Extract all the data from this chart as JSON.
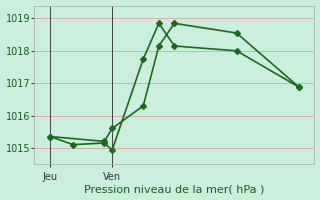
{
  "xlabel": "Pression niveau de la mer( hPa )",
  "background_color": "#cceedd",
  "grid_color": "#ddaaaa",
  "line_color": "#1a6b1a",
  "ylim": [
    1014.5,
    1019.4
  ],
  "xlim": [
    0,
    18
  ],
  "day_ticks": [
    1,
    5
  ],
  "day_labels": [
    "Jeu",
    "Ven"
  ],
  "day_vlines": [
    1,
    5
  ],
  "series1_x": [
    1,
    2.5,
    4.5,
    5,
    7,
    8,
    9,
    13,
    17
  ],
  "series1_y": [
    1015.35,
    1015.1,
    1015.15,
    1014.93,
    1017.75,
    1018.85,
    1018.15,
    1018.0,
    1016.88
  ],
  "series2_x": [
    1,
    4.5,
    5,
    7,
    8,
    9,
    13,
    17
  ],
  "series2_y": [
    1015.35,
    1015.2,
    1015.6,
    1016.3,
    1018.15,
    1018.85,
    1018.55,
    1016.88
  ],
  "marker_size": 3,
  "line_width": 1.2,
  "yticks": [
    1015,
    1016,
    1017,
    1018,
    1019
  ],
  "xlabel_fontsize": 8,
  "tick_fontsize": 7
}
